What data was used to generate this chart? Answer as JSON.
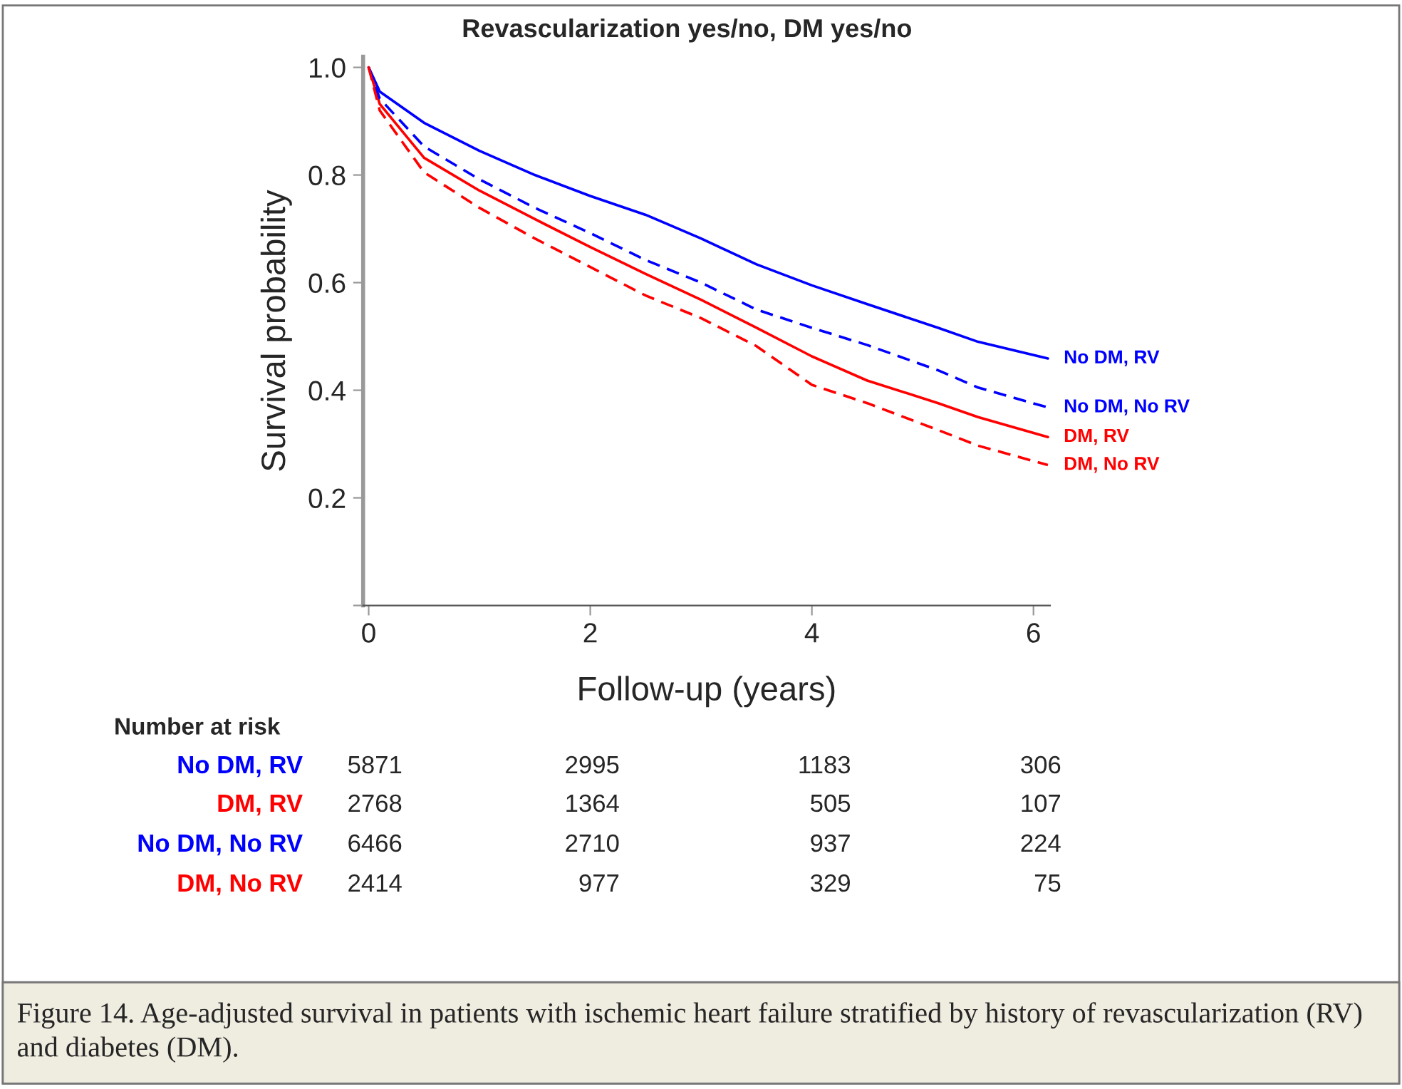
{
  "chart_data": {
    "type": "line",
    "title": "Revascularization yes/no, DM yes/no",
    "xlabel": "Follow-up (years)",
    "ylabel": "Survival probability",
    "xlim": [
      -0.05,
      6.15
    ],
    "xticks": [
      0,
      2,
      4,
      6
    ],
    "ylim": [
      0,
      1.02
    ],
    "yticks": [
      {
        "value": 0,
        "label": null
      },
      0.2,
      0.4,
      0.6,
      0.8,
      {
        "value": 1.0,
        "label": "1.0"
      }
    ],
    "grid": false,
    "legend": false,
    "marker": "none",
    "x": [
      0,
      0.1,
      0.5,
      1,
      1.5,
      2,
      2.5,
      3,
      3.5,
      4,
      4.5,
      5.14,
      5.5,
      6.13
    ],
    "series": [
      {
        "name": "No DM, RV",
        "color": "#0000ff",
        "line_style": "solid",
        "values": [
          1.0,
          0.955,
          0.897,
          0.845,
          0.8,
          0.761,
          0.726,
          0.682,
          0.634,
          0.595,
          0.56,
          0.516,
          0.49,
          0.459
        ]
      },
      {
        "name": "DM, RV",
        "color": "#ff0000",
        "line_style": "solid",
        "values": [
          1.0,
          0.932,
          0.832,
          0.771,
          0.718,
          0.666,
          0.616,
          0.568,
          0.516,
          0.463,
          0.418,
          0.376,
          0.35,
          0.313
        ]
      },
      {
        "name": "No DM, No RV",
        "color": "#0000ff",
        "line_style": "dashed",
        "values": [
          1.0,
          0.942,
          0.853,
          0.792,
          0.739,
          0.692,
          0.642,
          0.6,
          0.55,
          0.516,
          0.484,
          0.437,
          0.405,
          0.368
        ]
      },
      {
        "name": "DM, No RV",
        "color": "#ff0000",
        "line_style": "dashed",
        "values": [
          1.0,
          0.92,
          0.805,
          0.739,
          0.682,
          0.629,
          0.576,
          0.534,
          0.482,
          0.41,
          0.376,
          0.326,
          0.297,
          0.261
        ]
      }
    ],
    "annotations": [
      "Number at risk",
      "No DM, RV",
      "5871",
      "2995",
      "1183",
      "306",
      "DM, RV",
      "2768",
      "1364",
      "505",
      "107",
      "No DM, No RV",
      "6466",
      "2710",
      "937",
      "224",
      "DM, No RV",
      "2414",
      "977",
      "329",
      "75",
      "Figure 14. Age-adjusted survival in patients with ischemic heart failure stratified by history of revascularization (RV) and diabetes (DM)."
    ]
  }
}
